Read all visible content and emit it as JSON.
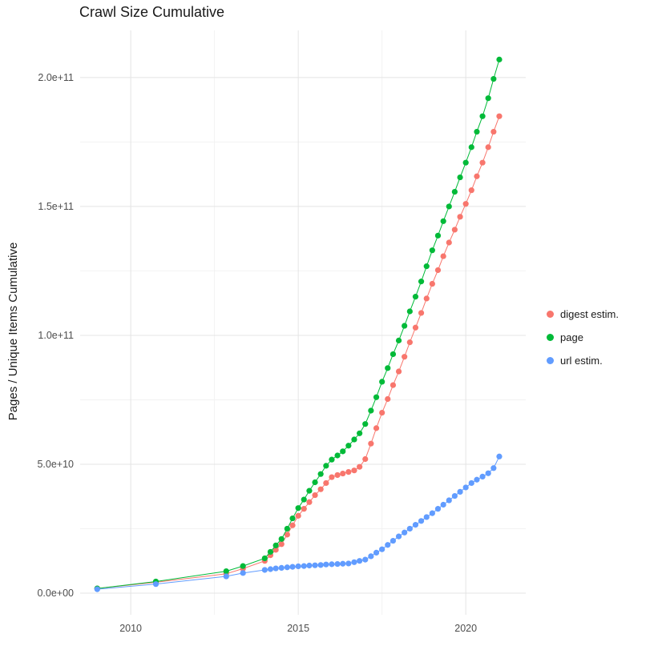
{
  "chart_data": {
    "type": "scatter",
    "title": "Crawl Size Cumulative",
    "xlabel": "",
    "ylabel": "Pages / Unique Items Cumulative",
    "grid": true,
    "legend_position": "right",
    "x_range": [
      2008.49,
      2021.79
    ],
    "y_range": [
      -8400000000.0,
      218300000000.0
    ],
    "x_ticks": {
      "values": [
        2010,
        2015,
        2020
      ],
      "labels": [
        "2010",
        "2015",
        "2020"
      ]
    },
    "y_ticks": {
      "values": [
        0,
        50000000000.0,
        100000000000.0,
        150000000000.0,
        200000000000.0
      ],
      "labels": [
        "0.0e+00",
        "5.0e+10",
        "1.0e+11",
        "1.5e+11",
        "2.0e+11"
      ]
    },
    "unit": 1000000000.0,
    "x_years": [
      2009.0,
      2010.75,
      2012.85,
      2013.35,
      2014.0,
      2014.17,
      2014.33,
      2014.5,
      2014.67,
      2014.83,
      2015.0,
      2015.17,
      2015.33,
      2015.5,
      2015.67,
      2015.83,
      2016.0,
      2016.17,
      2016.33,
      2016.5,
      2016.67,
      2016.83,
      2017.0,
      2017.17,
      2017.33,
      2017.5,
      2017.67,
      2017.83,
      2018.0,
      2018.17,
      2018.33,
      2018.5,
      2018.67,
      2018.83,
      2019.0,
      2019.17,
      2019.33,
      2019.5,
      2019.67,
      2019.83,
      2020.0,
      2020.17,
      2020.33,
      2020.5,
      2020.67,
      2020.83,
      2021.0
    ],
    "series": [
      {
        "name": "digest estim.",
        "color": "#F8766D",
        "values": [
          1.8,
          4.2,
          7.5,
          9.5,
          12.5,
          14.7,
          16.8,
          19.0,
          22.7,
          26.3,
          30.0,
          32.7,
          35.3,
          38.0,
          40.3,
          42.7,
          45.0,
          45.8,
          46.4,
          47.0,
          47.6,
          49.0,
          52.0,
          58.0,
          64.0,
          70.0,
          75.3,
          80.7,
          86.0,
          91.7,
          97.3,
          103.0,
          108.7,
          114.3,
          120.0,
          125.3,
          130.7,
          136.0,
          141.0,
          146.0,
          151.0,
          156.3,
          161.7,
          167.0,
          173.0,
          179.0,
          185.0
        ]
      },
      {
        "name": "page",
        "color": "#00BA38",
        "values": [
          1.8,
          4.5,
          8.5,
          10.5,
          13.5,
          16.0,
          18.5,
          21.0,
          25.0,
          29.0,
          33.0,
          36.3,
          39.7,
          43.0,
          46.2,
          49.4,
          51.8,
          53.4,
          55.0,
          57.2,
          59.6,
          62.0,
          65.6,
          70.8,
          76.0,
          82.0,
          87.3,
          92.7,
          98.0,
          103.7,
          109.3,
          115.0,
          120.9,
          126.8,
          133.0,
          138.7,
          144.3,
          150.0,
          155.7,
          161.3,
          167.0,
          173.0,
          179.0,
          185.0,
          192.0,
          199.5,
          207.0
        ]
      },
      {
        "name": "url estim.",
        "color": "#619CFF",
        "values": [
          1.5,
          3.5,
          6.5,
          7.8,
          9.0,
          9.3,
          9.6,
          9.8,
          10.0,
          10.2,
          10.4,
          10.5,
          10.7,
          10.8,
          10.9,
          11.1,
          11.2,
          11.3,
          11.4,
          11.5,
          12.0,
          12.5,
          13.0,
          14.3,
          15.7,
          17.0,
          18.7,
          20.3,
          22.0,
          23.5,
          25.0,
          26.5,
          28.0,
          29.5,
          31.0,
          32.7,
          34.3,
          36.0,
          37.7,
          39.3,
          41.0,
          42.7,
          44.0,
          45.2,
          46.5,
          48.5,
          53.0
        ]
      }
    ]
  }
}
